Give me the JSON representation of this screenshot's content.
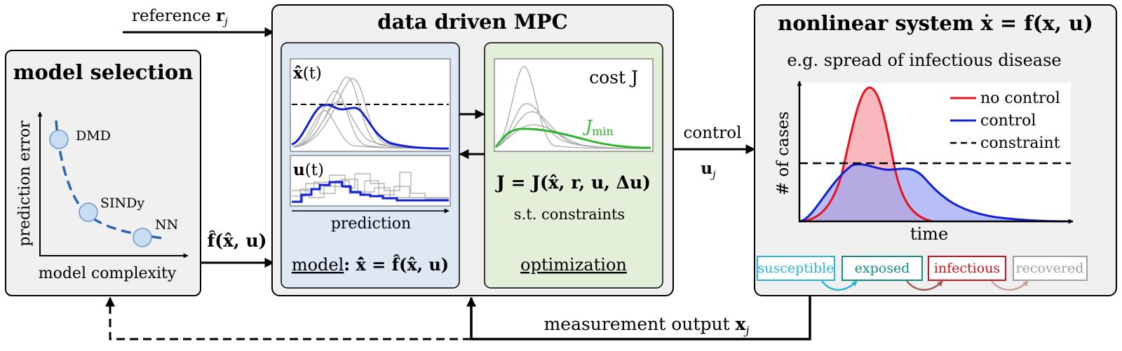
{
  "colors": {
    "panel_grey": "#f0f0f0",
    "model_blue_panel": "#dde8f4",
    "optim_green_panel": "#e3efd9",
    "no_control_red": "#e8101e",
    "control_blue": "#1020d8",
    "j_min_green": "#2bb52b",
    "susceptible": "#2ab3d9",
    "exposed": "#138a7e",
    "infectious": "#c8141a",
    "recovered": "#a0a0a0",
    "dmd_point": "#c9dcf2"
  },
  "reference": {
    "label": "reference ",
    "symbol": "r",
    "subscript": "j"
  },
  "model_selection": {
    "title": "model selection",
    "x_label": "model complexity",
    "y_label": "prediction error",
    "models": [
      "DMD",
      "SINDy",
      "NN"
    ]
  },
  "model_output": {
    "label": "f̂(x̂, u)"
  },
  "mpc": {
    "title": "data driven MPC",
    "state_plot_label_symbol": "x̂",
    "state_plot_label_arg": "(t)",
    "input_plot_label_symbol": "u",
    "input_plot_label_arg": "(t)",
    "prediction_label": "prediction",
    "model_label_word": "model",
    "model_label_eq": ": x̂̇ = f̂(x̂, u)",
    "cost_label": "cost  J",
    "j_min_label": "J",
    "j_min_sub": "min",
    "cost_eq": "J = J(x̂, r, u, Δu)",
    "constraints": "s.t. constraints",
    "optimization_label": "optimization"
  },
  "control": {
    "label": "control",
    "symbol": "u",
    "subscript": "j"
  },
  "nonlinear_system": {
    "title": "nonlinear system  ẋ = f(x, u)",
    "subtitle": "e.g. spread of infectious disease",
    "y_label": "# of cases",
    "x_label": "time",
    "legend": [
      {
        "name": "no control",
        "style": "solid red"
      },
      {
        "name": "control",
        "style": "solid blue"
      },
      {
        "name": "constraint",
        "style": "dashed black"
      }
    ],
    "compartments": [
      "susceptible",
      "exposed",
      "infectious",
      "recovered"
    ]
  },
  "measurement": {
    "label": "measurement output ",
    "symbol": "x",
    "subscript": "j"
  }
}
